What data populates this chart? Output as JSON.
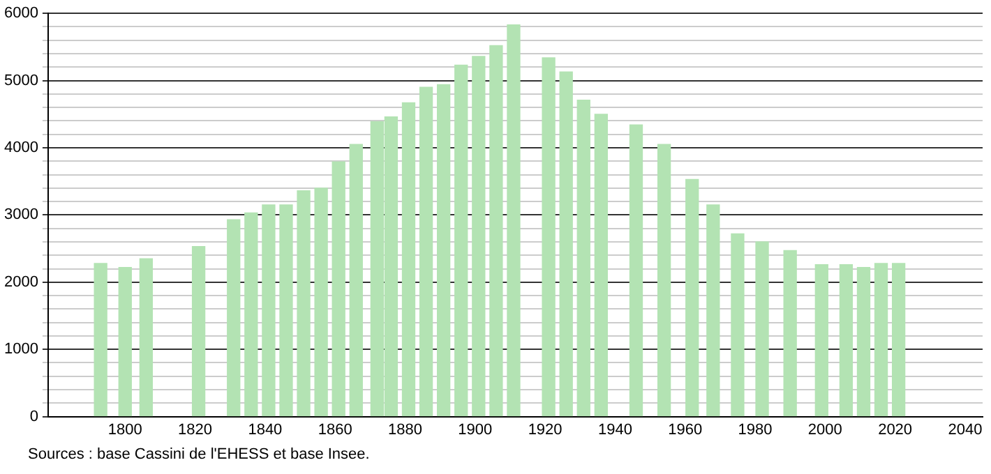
{
  "chart_data": {
    "type": "bar",
    "color": "#b3e3b3",
    "x": [
      1793,
      1800,
      1806,
      1821,
      1831,
      1836,
      1841,
      1846,
      1851,
      1856,
      1861,
      1866,
      1872,
      1876,
      1881,
      1886,
      1891,
      1896,
      1901,
      1906,
      1911,
      1921,
      1926,
      1931,
      1936,
      1946,
      1954,
      1962,
      1968,
      1975,
      1982,
      1990,
      1999,
      2006,
      2011,
      2016,
      2021
    ],
    "values": [
      2280,
      2220,
      2350,
      2530,
      2930,
      3030,
      3150,
      3150,
      3360,
      3400,
      3790,
      4050,
      4390,
      4460,
      4670,
      4900,
      4940,
      5230,
      5360,
      5520,
      5830,
      5340,
      5130,
      4710,
      4500,
      4340,
      4050,
      3530,
      3150,
      2720,
      2600,
      2470,
      2260,
      2260,
      2220,
      2280,
      2280
    ],
    "xlim": [
      1778,
      2045
    ],
    "xticks": [
      1800,
      1820,
      1840,
      1860,
      1880,
      1900,
      1920,
      1940,
      1960,
      1980,
      2000,
      2020,
      2040
    ],
    "ylim": [
      0,
      6000
    ],
    "yticks": [
      0,
      {
        "value": 200,
        "label": null
      },
      {
        "value": 400,
        "label": null
      },
      {
        "value": 600,
        "label": null
      },
      {
        "value": 800,
        "label": null
      },
      1000,
      {
        "value": 1200,
        "label": null
      },
      {
        "value": 1400,
        "label": null
      },
      {
        "value": 1600,
        "label": null
      },
      {
        "value": 1800,
        "label": null
      },
      2000,
      {
        "value": 2200,
        "label": null
      },
      {
        "value": 2400,
        "label": null
      },
      {
        "value": 2600,
        "label": null
      },
      {
        "value": 2800,
        "label": null
      },
      3000,
      {
        "value": 3200,
        "label": null
      },
      {
        "value": 3400,
        "label": null
      },
      {
        "value": 3600,
        "label": null
      },
      {
        "value": 3800,
        "label": null
      },
      4000,
      {
        "value": 4200,
        "label": null
      },
      {
        "value": 4400,
        "label": null
      },
      {
        "value": 4600,
        "label": null
      },
      {
        "value": 4800,
        "label": null
      },
      5000,
      {
        "value": 5200,
        "label": null
      },
      {
        "value": 5400,
        "label": null
      },
      {
        "value": 5600,
        "label": null
      },
      {
        "value": 5800,
        "label": null
      },
      6000
    ],
    "grid": "y",
    "legend": false,
    "annotations": [
      "Sources : base Cassini de l'EHESS et base Insee."
    ]
  }
}
